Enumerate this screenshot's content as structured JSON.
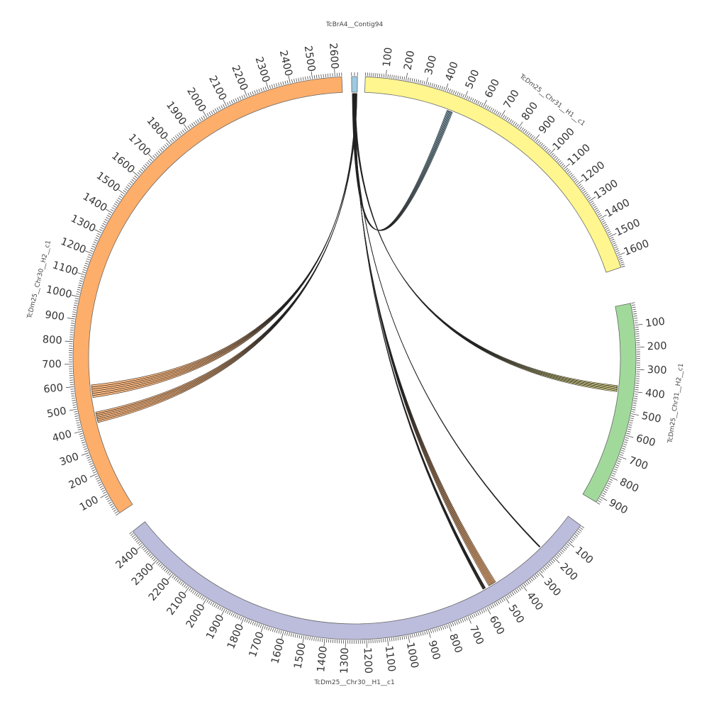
{
  "diagram": {
    "type": "circos",
    "segments": [
      {
        "id": "contig94",
        "name": "TcBrA4__Contig94",
        "length": 20,
        "color": "#9ecae1",
        "ticks": []
      },
      {
        "id": "chr31h1",
        "name": "TcDm25__Chr31__H1__c1",
        "length": 1660,
        "color": "#fff68f",
        "ticks": [
          "100",
          "200",
          "300",
          "400",
          "500",
          "600",
          "700",
          "800",
          "900",
          "1000",
          "1100",
          "1200",
          "1300",
          "1400",
          "1500",
          "1600"
        ]
      },
      {
        "id": "chr31h2",
        "name": "TcDm25__Chr31__H2__c1",
        "length": 930,
        "color": "#a1d99b",
        "ticks": [
          "100",
          "200",
          "300",
          "400",
          "500",
          "600",
          "700",
          "800",
          "900"
        ]
      },
      {
        "id": "chr30h1",
        "name": "TcDm25__Chr30__H1__c1",
        "length": 2480,
        "color": "#bcbddc",
        "ticks": [
          "100",
          "200",
          "300",
          "400",
          "500",
          "600",
          "700",
          "800",
          "900",
          "1000",
          "1100",
          "1200",
          "1300",
          "1400",
          "1500",
          "1600",
          "1700",
          "1800",
          "1900",
          "2000",
          "2100",
          "2200",
          "2300",
          "2400"
        ]
      },
      {
        "id": "chr30h2",
        "name": "TcDm25__Chr30__H2__c1",
        "length": 2630,
        "color": "#fdae6b",
        "ticks": [
          "100",
          "200",
          "300",
          "400",
          "500",
          "600",
          "700",
          "800",
          "900",
          "1000",
          "1100",
          "1200",
          "1300",
          "1400",
          "1500",
          "1600",
          "1700",
          "1800",
          "1900",
          "2000",
          "2100",
          "2200",
          "2300",
          "2400",
          "2500",
          "2600"
        ]
      }
    ],
    "links": [
      {
        "from": "contig94",
        "from_start": 2,
        "from_end": 8,
        "to": "chr31h1",
        "to_start": 440,
        "to_end": 470,
        "color": "#9ecae1"
      },
      {
        "from": "contig94",
        "from_start": 8,
        "from_end": 14,
        "to": "chr31h2",
        "to_start": 380,
        "to_end": 410,
        "color": "#fff68f"
      },
      {
        "from": "contig94",
        "from_start": 5,
        "from_end": 7,
        "to": "chr30h1",
        "to_start": 210,
        "to_end": 215,
        "color": "#9ecae1"
      },
      {
        "from": "contig94",
        "from_start": 9,
        "from_end": 11,
        "to": "chr30h1",
        "to_start": 500,
        "to_end": 540,
        "color": "#fdae6b"
      },
      {
        "from": "contig94",
        "from_start": 11,
        "from_end": 13,
        "to": "chr30h1",
        "to_start": 560,
        "to_end": 575,
        "color": "#fdae6b"
      },
      {
        "from": "contig94",
        "from_start": 13,
        "from_end": 16,
        "to": "chr30h2",
        "to_start": 540,
        "to_end": 600,
        "color": "#fdae6b"
      },
      {
        "from": "contig94",
        "from_start": 16,
        "from_end": 19,
        "to": "chr30h2",
        "to_start": 420,
        "to_end": 470,
        "color": "#fdae6b"
      }
    ]
  }
}
